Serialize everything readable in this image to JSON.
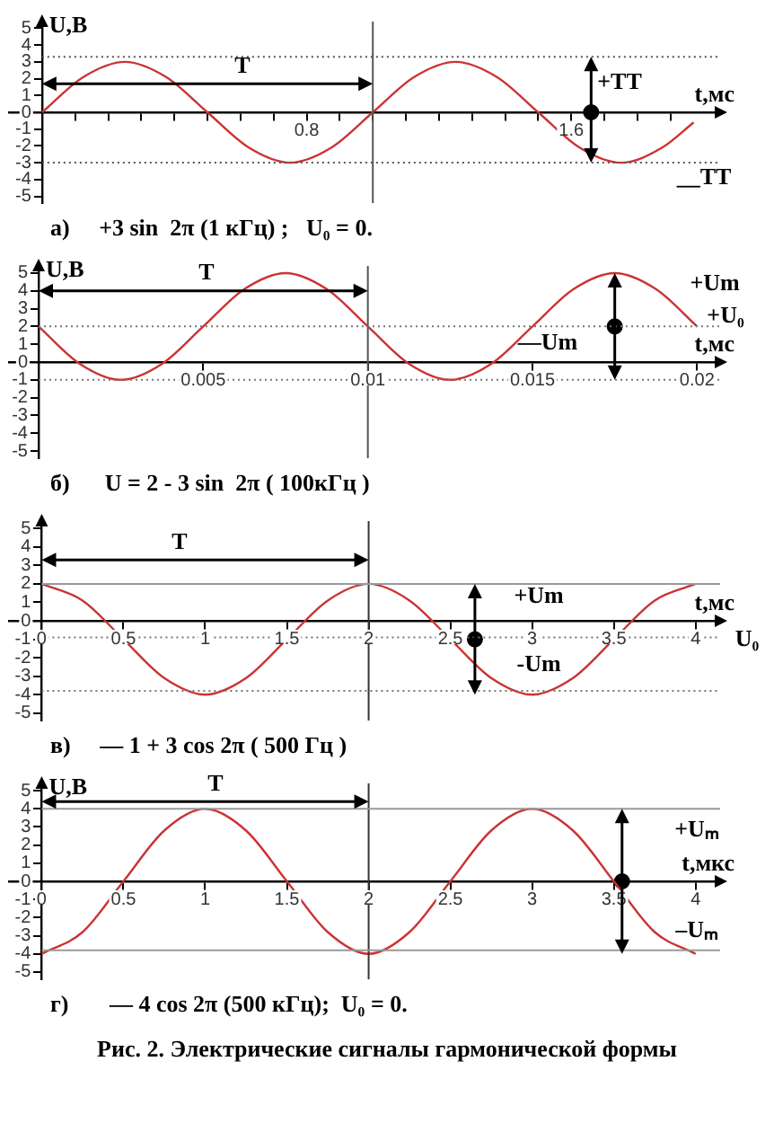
{
  "chart_data": [
    {
      "type": "line",
      "title": "а)     +3 sin  2π (1 кГц) ;   U₀ = 0.",
      "xlabel": "t,мс",
      "ylabel": "U,В",
      "grid": false,
      "legend": false,
      "marker": "none",
      "x": [
        0,
        0.125,
        0.25,
        0.375,
        0.5,
        0.625,
        0.75,
        0.875,
        1,
        1.125,
        1.25,
        1.375,
        1.5,
        1.625,
        1.75,
        1.875,
        1.97
      ],
      "series": [
        {
          "color": "#cc3333",
          "values": [
            0,
            2.1,
            3,
            2.1,
            0,
            -2.1,
            -3,
            -2.1,
            0,
            2.1,
            3,
            2.1,
            0,
            -2.1,
            -3,
            -2.1,
            -0.6
          ]
        },
        {
          "type": "scatter",
          "marker": "circle",
          "color": "#000000",
          "x": [
            1.66
          ],
          "values": [
            0
          ]
        }
      ],
      "xlim": [
        -0.1,
        2.05
      ],
      "ylim": [
        -5.4,
        5.4
      ],
      "xticks": [
        {
          "value": 0,
          "label": null
        },
        {
          "value": 0.1,
          "label": null
        },
        {
          "value": 0.2,
          "label": null
        },
        {
          "value": 0.3,
          "label": null
        },
        {
          "value": 0.4,
          "label": null
        },
        {
          "value": 0.5,
          "label": null
        },
        {
          "value": 0.6,
          "label": null
        },
        {
          "value": 0.7,
          "label": null
        },
        {
          "value": 0.8,
          "label": "0.8"
        },
        {
          "value": 0.9,
          "label": null
        },
        {
          "value": 1,
          "label": null
        },
        {
          "value": 1.1,
          "label": null
        },
        {
          "value": 1.2,
          "label": null
        },
        {
          "value": 1.3,
          "label": null
        },
        {
          "value": 1.4,
          "label": null
        },
        {
          "value": 1.5,
          "label": null
        },
        {
          "value": 1.6,
          "label": "1.6"
        },
        {
          "value": 1.7,
          "label": null
        },
        {
          "value": 1.8,
          "label": null
        },
        {
          "value": 1.9,
          "label": null
        }
      ],
      "yticks": [
        -5,
        -4,
        -3,
        -2,
        -1,
        0,
        1,
        2,
        3,
        4,
        5
      ],
      "ref_lines": [
        {
          "axis": "x",
          "value": 1,
          "color": "#555555",
          "line_style": "solid"
        },
        {
          "axis": "y",
          "value": 3.3,
          "color": "#555555",
          "line_style": "dotted"
        },
        {
          "axis": "y",
          "value": -3,
          "color": "#555555",
          "line_style": "dotted"
        }
      ],
      "annotations": [
        "T",
        "+TT",
        "__TT"
      ]
    },
    {
      "type": "line",
      "title": "б)      U = 2 - 3 sin  2π ( 100кГц )",
      "xlabel": "t,мс",
      "ylabel": "U,В",
      "grid": false,
      "legend": false,
      "marker": "none",
      "x": [
        0,
        0.00125,
        0.0025,
        0.00375,
        0.005,
        0.00625,
        0.0075,
        0.00875,
        0.01,
        0.01125,
        0.0125,
        0.01375,
        0.015,
        0.01625,
        0.0175,
        0.01875,
        0.02
      ],
      "series": [
        {
          "color": "#cc3333",
          "values": [
            2,
            -0.1,
            -1,
            -0.1,
            2,
            4.1,
            5,
            4.1,
            2,
            -0.1,
            -1,
            -0.1,
            2,
            4.1,
            5,
            4.1,
            2
          ]
        },
        {
          "type": "scatter",
          "marker": "circle",
          "color": "#000000",
          "x": [
            0.0175
          ],
          "values": [
            2
          ]
        }
      ],
      "xlim": [
        -0.0009,
        0.0207
      ],
      "ylim": [
        -5.4,
        5.4
      ],
      "xticks": [
        {
          "value": 0,
          "label": null
        },
        0.005,
        0.01,
        0.015,
        0.02
      ],
      "yticks": [
        -5,
        -4,
        -3,
        -2,
        -1,
        0,
        1,
        2,
        3,
        4,
        5
      ],
      "ref_lines": [
        {
          "axis": "x",
          "value": 0.01,
          "color": "#555555",
          "line_style": "solid"
        },
        {
          "axis": "y",
          "value": 2,
          "color": "#777777",
          "line_style": "dotted"
        },
        {
          "axis": "y",
          "value": -1,
          "color": "#777777",
          "line_style": "dotted"
        }
      ],
      "annotations": [
        "T",
        "+Um",
        "+U₀",
        "—Um"
      ]
    },
    {
      "type": "line",
      "title": "в)     — 1 + 3 cos 2π ( 500 Гц )",
      "xlabel": "t,мс",
      "grid": false,
      "legend": false,
      "marker": "none",
      "x": [
        0,
        0.25,
        0.5,
        0.75,
        1,
        1.25,
        1.5,
        1.75,
        2,
        2.25,
        2.5,
        2.75,
        3,
        3.25,
        3.5,
        3.75,
        4
      ],
      "series": [
        {
          "color": "#cc3333",
          "values": [
            2,
            1.1,
            -1,
            -3.1,
            -4,
            -3.1,
            -1,
            1.1,
            2,
            1.1,
            -1,
            -3.1,
            -4,
            -3.1,
            -1,
            1.1,
            2
          ]
        },
        {
          "type": "scatter",
          "marker": "circle",
          "color": "#000000",
          "x": [
            2.65
          ],
          "values": [
            -1
          ]
        }
      ],
      "xlim": [
        -0.2,
        4.15
      ],
      "ylim": [
        -5.4,
        5.4
      ],
      "xticks": [
        0,
        0.5,
        1,
        1.5,
        2,
        2.5,
        3,
        3.5,
        4
      ],
      "yticks": [
        -5,
        -4,
        -3,
        -2,
        -1,
        0,
        1,
        2,
        3,
        4,
        5
      ],
      "ref_lines": [
        {
          "axis": "x",
          "value": 2,
          "color": "#333333",
          "line_style": "solid"
        },
        {
          "axis": "y",
          "value": 2,
          "color": "#999999",
          "line_style": "solid"
        },
        {
          "axis": "y",
          "value": -0.9,
          "color": "#777777",
          "line_style": "dotted"
        },
        {
          "axis": "y",
          "value": -3.8,
          "color": "#777777",
          "line_style": "dotted"
        }
      ],
      "annotations": [
        "T",
        "+Um",
        "-Um",
        "U₀"
      ]
    },
    {
      "type": "line",
      "title": "г)       — 4 cos 2π (500 кГц);  U₀ = 0.",
      "xlabel": "t,мкс",
      "ylabel": "U,В",
      "grid": false,
      "legend": false,
      "marker": "none",
      "x": [
        0,
        0.25,
        0.5,
        0.75,
        1,
        1.25,
        1.5,
        1.75,
        2,
        2.25,
        2.5,
        2.75,
        3,
        3.25,
        3.5,
        3.75,
        4
      ],
      "series": [
        {
          "color": "#cc3333",
          "values": [
            -4,
            -2.8,
            0,
            2.8,
            4,
            2.8,
            0,
            -2.8,
            -4,
            -2.8,
            0,
            2.8,
            4,
            2.8,
            0,
            -2.8,
            -4
          ]
        },
        {
          "type": "scatter",
          "marker": "circle",
          "color": "#000000",
          "x": [
            3.55
          ],
          "values": [
            0
          ]
        }
      ],
      "xlim": [
        -0.2,
        4.15
      ],
      "ylim": [
        -5.4,
        5.4
      ],
      "xticks": [
        0,
        0.5,
        1,
        1.5,
        2,
        2.5,
        3,
        3.5,
        4
      ],
      "yticks": [
        -5,
        -4,
        -3,
        -2,
        -1,
        0,
        1,
        2,
        3,
        4,
        5
      ],
      "ref_lines": [
        {
          "axis": "x",
          "value": 2,
          "color": "#333333",
          "line_style": "solid"
        },
        {
          "axis": "y",
          "value": 4,
          "color": "#999999",
          "line_style": "solid"
        },
        {
          "axis": "y",
          "value": -3.8,
          "color": "#999999",
          "line_style": "solid"
        }
      ],
      "annotations": [
        "T",
        "+Uₘ",
        "–Uₘ",
        "Рис. 2. Электрические сигналы гармонической формы"
      ]
    }
  ]
}
